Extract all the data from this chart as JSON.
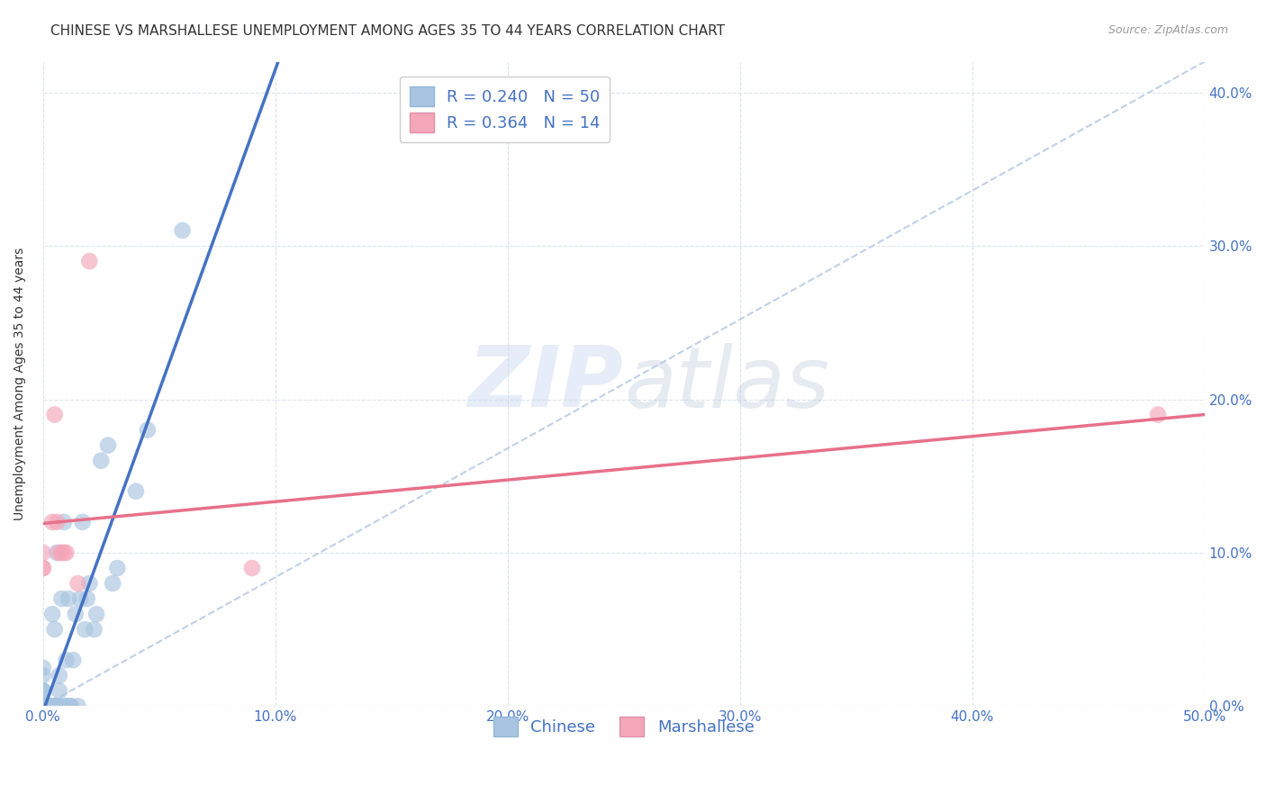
{
  "title": "CHINESE VS MARSHALLESE UNEMPLOYMENT AMONG AGES 35 TO 44 YEARS CORRELATION CHART",
  "source": "Source: ZipAtlas.com",
  "ylabel": "Unemployment Among Ages 35 to 44 years",
  "xlim": [
    0.0,
    0.5
  ],
  "ylim": [
    0.0,
    0.42
  ],
  "chinese_color": "#a8c4e0",
  "marshallese_color": "#f4a7b9",
  "chinese_line_color": "#4472c4",
  "marshallese_line_color": "#e8708a",
  "diagonal_color": "#c0d0e8",
  "R_chinese": 0.24,
  "N_chinese": 50,
  "R_marshallese": 0.364,
  "N_marshallese": 14,
  "chinese_x": [
    0.0,
    0.0,
    0.0,
    0.0,
    0.0,
    0.0,
    0.0,
    0.0,
    0.0,
    0.0,
    0.003,
    0.003,
    0.003,
    0.004,
    0.004,
    0.005,
    0.005,
    0.005,
    0.006,
    0.006,
    0.006,
    0.007,
    0.007,
    0.007,
    0.008,
    0.008,
    0.009,
    0.01,
    0.01,
    0.01,
    0.011,
    0.012,
    0.012,
    0.013,
    0.014,
    0.015,
    0.016,
    0.017,
    0.018,
    0.019,
    0.02,
    0.022,
    0.023,
    0.025,
    0.028,
    0.03,
    0.032,
    0.04,
    0.045,
    0.06
  ],
  "chinese_y": [
    0.0,
    0.0,
    0.0,
    0.0,
    0.0,
    0.01,
    0.01,
    0.01,
    0.02,
    0.025,
    0.0,
    0.0,
    0.0,
    0.0,
    0.06,
    0.0,
    0.0,
    0.05,
    0.1,
    0.0,
    0.0,
    0.0,
    0.01,
    0.02,
    0.07,
    0.0,
    0.12,
    0.0,
    0.0,
    0.03,
    0.07,
    0.0,
    0.0,
    0.03,
    0.06,
    0.0,
    0.07,
    0.12,
    0.05,
    0.07,
    0.08,
    0.05,
    0.06,
    0.16,
    0.17,
    0.08,
    0.09,
    0.14,
    0.18,
    0.31
  ],
  "marshallese_x": [
    0.0,
    0.0,
    0.0,
    0.004,
    0.005,
    0.006,
    0.007,
    0.008,
    0.009,
    0.01,
    0.015,
    0.02,
    0.09,
    0.48
  ],
  "marshallese_y": [
    0.09,
    0.09,
    0.1,
    0.12,
    0.19,
    0.12,
    0.1,
    0.1,
    0.1,
    0.1,
    0.08,
    0.29,
    0.09,
    0.19
  ],
  "watermark_zip": "ZIP",
  "watermark_atlas": "atlas",
  "title_fontsize": 11,
  "label_fontsize": 10,
  "tick_fontsize": 11,
  "legend_fontsize": 13
}
